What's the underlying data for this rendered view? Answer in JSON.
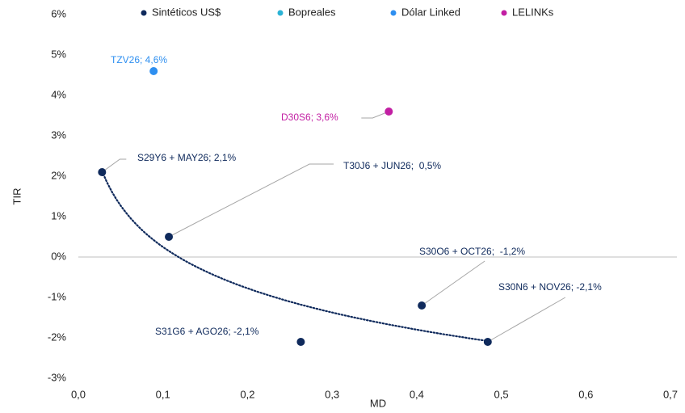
{
  "chart_data": {
    "type": "scatter",
    "xlabel": "MD",
    "ylabel": "TIR",
    "xlim": [
      0,
      0.7
    ],
    "ylim": [
      -3,
      6
    ],
    "xticks": [
      {
        "value": 0,
        "label": "0,0"
      },
      {
        "value": 0.1,
        "label": "0,1"
      },
      {
        "value": 0.2,
        "label": "0,2"
      },
      {
        "value": 0.3,
        "label": "0,3"
      },
      {
        "value": 0.4,
        "label": "0,4"
      },
      {
        "value": 0.5,
        "label": "0,5"
      },
      {
        "value": 0.6,
        "label": "0,6"
      },
      {
        "value": 0.7,
        "label": "0,7"
      }
    ],
    "yticks": [
      {
        "value": -3,
        "label": "-3%"
      },
      {
        "value": -2,
        "label": "-2%"
      },
      {
        "value": -1,
        "label": "-1%"
      },
      {
        "value": 0,
        "label": "0%"
      },
      {
        "value": 1,
        "label": "1%"
      },
      {
        "value": 2,
        "label": "2%"
      },
      {
        "value": 3,
        "label": "3%"
      },
      {
        "value": 4,
        "label": "4%"
      },
      {
        "value": 5,
        "label": "5%"
      },
      {
        "value": 6,
        "label": "6%"
      }
    ],
    "legend": "top",
    "trendline": "log",
    "series": [
      {
        "name": "Sintéticos US$",
        "color": "#0f2a5c",
        "x": [
          0.028,
          0.107,
          0.406,
          0.484,
          0.263
        ],
        "y": [
          2.1,
          0.5,
          -1.2,
          -2.1,
          -2.1
        ],
        "point_labels": [
          "S29Y6 + MAY26; 2,1%",
          "T30J6 + JUN26;  0,5%",
          "S30O6 + OCT26;  -1,2%",
          "S30N6 + NOV26; -2,1%",
          "S31G6 + AGO26; -2,1%"
        ]
      },
      {
        "name": "Bopreales",
        "color": "#2bb3d6",
        "x": [],
        "y": [],
        "point_labels": []
      },
      {
        "name": "Dólar Linked",
        "color": "#2e8ff0",
        "x": [
          0.089
        ],
        "y": [
          4.6
        ],
        "point_labels": [
          "TZV26; 4,6%"
        ]
      },
      {
        "name": "LELINKs",
        "color": "#c21fa3",
        "x": [
          0.367
        ],
        "y": [
          3.6
        ],
        "point_labels": [
          "D30S6; 3,6%"
        ]
      }
    ]
  }
}
